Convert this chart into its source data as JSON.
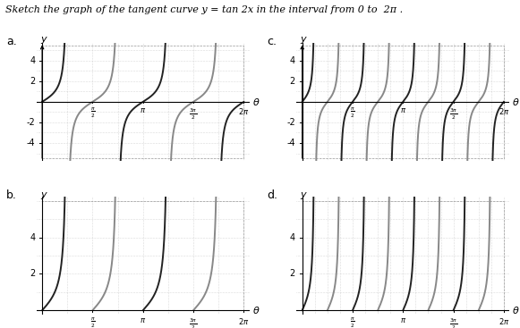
{
  "title_part1": "Sketch the graph of the tangent curve ",
  "title_italic": "y",
  "title_part2": " = tan ",
  "title_sub": "2",
  "title_part3": "x in the interval from 0 to  ",
  "title_2pi": "2π",
  "title_period": " .",
  "pi": 3.14159265358979,
  "subplots": [
    {
      "label": "a.",
      "row": 0,
      "col": 0,
      "ylim": [
        -5.5,
        5.5
      ],
      "show_negative": true,
      "period_factor": 2
    },
    {
      "label": "b.",
      "row": 1,
      "col": 0,
      "ylim": [
        0,
        6.0
      ],
      "show_negative": false,
      "period_factor": 2
    },
    {
      "label": "c.",
      "row": 0,
      "col": 1,
      "ylim": [
        -5.5,
        5.5
      ],
      "show_negative": true,
      "period_factor": 4
    },
    {
      "label": "d.",
      "row": 1,
      "col": 1,
      "ylim": [
        0,
        6.0
      ],
      "show_negative": false,
      "period_factor": 4
    }
  ],
  "xlim": [
    0,
    6.2832
  ],
  "yticks_full": [
    -4,
    -2,
    2,
    4
  ],
  "yticks_pos": [
    2,
    4
  ],
  "grid_color": "#bbbbbb",
  "bg_color": "#ffffff",
  "curve_colors": [
    "#222222",
    "#888888"
  ],
  "line_width": 1.4,
  "axis_color": "#000000",
  "label_fontsize": 8,
  "tick_fontsize": 7,
  "title_fontsize": 8
}
